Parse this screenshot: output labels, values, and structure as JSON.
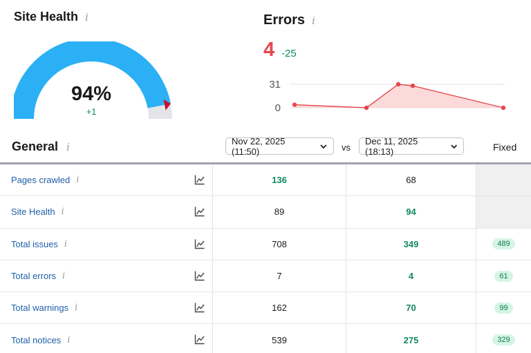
{
  "site_health": {
    "title": "Site Health",
    "info_icon": "i",
    "value": "94%",
    "value_fraction": 0.94,
    "delta": "+1",
    "colors": {
      "fill": "#2bb0f5",
      "track": "#e4e5e8",
      "marker": "#c8102e",
      "delta": "#0f8a5f"
    }
  },
  "errors": {
    "title": "Errors",
    "info_icon": "i",
    "count": "4",
    "delta": "-25",
    "y_ticks": [
      "31",
      "0"
    ],
    "colors": {
      "count": "#e5484d",
      "line": "#e5484d",
      "area": "#fbd3d4",
      "delta": "#0f8a5f"
    }
  },
  "chart_data": {
    "type": "area",
    "x": [
      1,
      2,
      3,
      4,
      5
    ],
    "values": [
      4,
      0,
      31,
      29,
      0
    ],
    "ylim": [
      0,
      31
    ],
    "y_ticks": [
      0,
      31
    ],
    "grid": true
  },
  "general": {
    "title": "General",
    "info_icon": "i",
    "date_a": "Nov 22, 2025 (11:50)",
    "vs": "vs",
    "date_b": "Dec 11, 2025 (18:13)",
    "fixed_header": "Fixed"
  },
  "rows": [
    {
      "name": "Pages crawled",
      "v1": "136",
      "v2": "68",
      "fixed": ""
    },
    {
      "name": "Site Health",
      "v1": "89",
      "v2": "94",
      "fixed": ""
    },
    {
      "name": "Total issues",
      "v1": "708",
      "v2": "349",
      "fixed": "489"
    },
    {
      "name": "Total errors",
      "v1": "7",
      "v2": "4",
      "fixed": "61"
    },
    {
      "name": "Total warnings",
      "v1": "162",
      "v2": "70",
      "fixed": "99"
    },
    {
      "name": "Total notices",
      "v1": "539",
      "v2": "275",
      "fixed": "329"
    }
  ],
  "row_icons": {
    "info": "info-icon",
    "trend": "trend-chart-icon"
  },
  "colors": {
    "link": "#1f5fa8",
    "good": "#0f8a5f",
    "pill_bg": "#d5f5e3"
  }
}
